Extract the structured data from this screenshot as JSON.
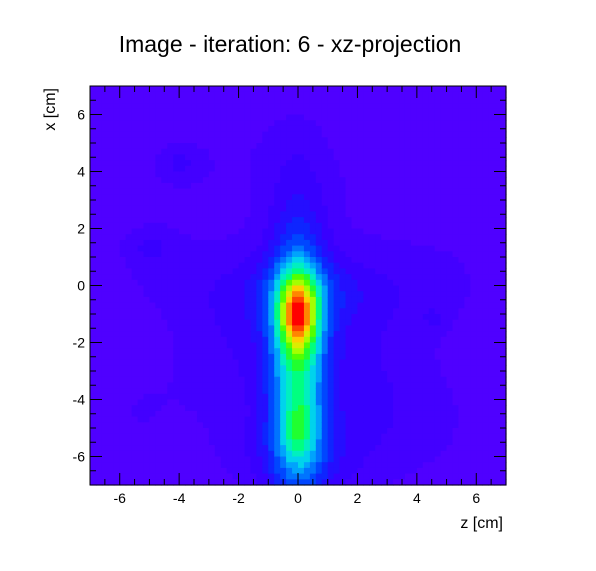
{
  "chart_data": {
    "type": "heatmap",
    "title": "Image - iteration: 6 - xz-projection",
    "xlabel": "z [cm]",
    "ylabel": "x [cm]",
    "xlim": [
      -7,
      7
    ],
    "ylim": [
      -7,
      7
    ],
    "x_ticks": [
      -6,
      -4,
      -2,
      0,
      2,
      4,
      6
    ],
    "y_ticks": [
      -6,
      -4,
      -2,
      0,
      2,
      4,
      6
    ],
    "colormap": "rainbow",
    "background_color": "#6600ff",
    "blobs": [
      {
        "z": 0.0,
        "x": -1.0,
        "sz": 0.45,
        "sx": 0.9,
        "amp": 0.42
      },
      {
        "z": 0.0,
        "x": -2.6,
        "sz": 0.7,
        "sx": 3.6,
        "amp": 0.42
      },
      {
        "z": 0.0,
        "x": -5.0,
        "sz": 0.4,
        "sx": 0.7,
        "amp": 0.14
      },
      {
        "z": 0.3,
        "x": -0.2,
        "sz": 1.9,
        "sx": 0.9,
        "amp": 0.12
      },
      {
        "z": -2.0,
        "x": -2.0,
        "sz": 1.6,
        "sx": 2.5,
        "amp": 0.09
      },
      {
        "z": 2.0,
        "x": -3.0,
        "sz": 1.7,
        "sx": 2.8,
        "amp": 0.1
      },
      {
        "z": 0.0,
        "x": -6.0,
        "sz": 1.6,
        "sx": 1.0,
        "amp": 0.1
      },
      {
        "z": -5.0,
        "x": 1.0,
        "sz": 1.3,
        "sx": 1.6,
        "amp": 0.05
      },
      {
        "z": 5.0,
        "x": 0.0,
        "sz": 1.2,
        "sx": 1.3,
        "amp": 0.05
      },
      {
        "z": -4.0,
        "x": 4.3,
        "sz": 0.6,
        "sx": 0.5,
        "amp": 0.09
      },
      {
        "z": -5.0,
        "x": 1.3,
        "sz": 0.5,
        "sx": 0.4,
        "amp": 0.06
      },
      {
        "z": 4.6,
        "x": -1.2,
        "sz": 0.3,
        "sx": 0.3,
        "amp": 0.05
      },
      {
        "z": -1.5,
        "x": 4.5,
        "sz": 1.8,
        "sx": 1.6,
        "amp": 0.04
      },
      {
        "z": 3.0,
        "x": 4.0,
        "sz": 2.0,
        "sx": 2.0,
        "amp": 0.035
      },
      {
        "z": -5.5,
        "x": -4.5,
        "sz": 1.2,
        "sx": 1.6,
        "amp": 0.045
      },
      {
        "z": 4.5,
        "x": -4.8,
        "sz": 1.4,
        "sx": 1.5,
        "amp": 0.045
      }
    ]
  }
}
